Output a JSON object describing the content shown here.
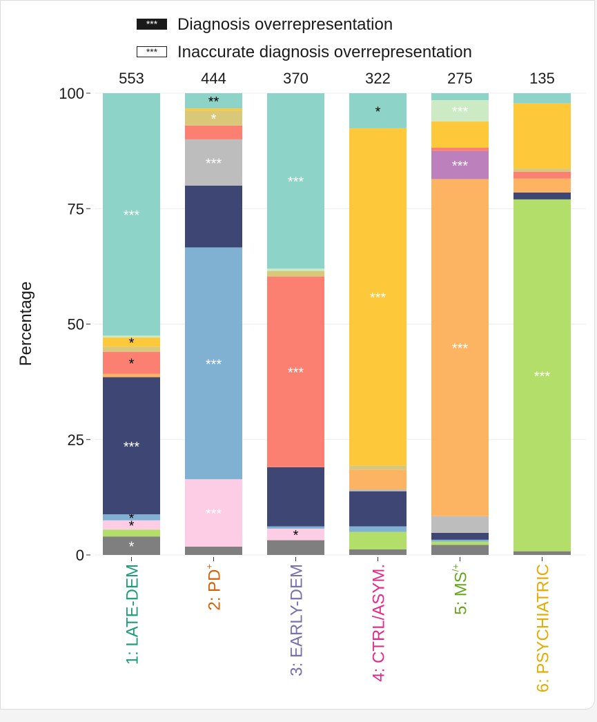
{
  "chart_data": {
    "type": "bar",
    "stacked": true,
    "ylabel": "Percentage",
    "ylim": [
      0,
      100
    ],
    "yticks": [
      "0",
      "25",
      "50",
      "75",
      "100"
    ],
    "grid": true,
    "legend_position": "top",
    "legend": [
      {
        "marker": "***",
        "label": "Diagnosis overrepresentation",
        "style": "filled"
      },
      {
        "marker": "***",
        "label": "Inaccurate diagnosis overrepresentation",
        "style": "outlined"
      }
    ],
    "categories": [
      {
        "prefix": "1: LATE-DEM",
        "sup": "",
        "color": "#1b9e77"
      },
      {
        "prefix": "2: PD",
        "sup": "+",
        "color": "#d95f02"
      },
      {
        "prefix": "3: EARLY-DEM",
        "sup": "",
        "color": "#7570b3"
      },
      {
        "prefix": "4: CTRL/ASYM.",
        "sup": "",
        "color": "#e7298a"
      },
      {
        "prefix": "5: MS",
        "sup": "/+",
        "color": "#66a61e"
      },
      {
        "prefix": "6: PSYCHIATRIC",
        "sup": "",
        "color": "#e6ab02"
      }
    ],
    "totals": [
      "553",
      "444",
      "370",
      "322",
      "275",
      "135"
    ],
    "bars": [
      [
        {
          "value": 4.0,
          "color": "#7f7f7f",
          "label": "*",
          "label_color": "#ffffff"
        },
        {
          "value": 1.5,
          "color": "#b3de69",
          "label": "",
          "label_color": ""
        },
        {
          "value": 2.0,
          "color": "#fccde5",
          "label": "*",
          "label_color": "#000000"
        },
        {
          "value": 1.3,
          "color": "#80b1d3",
          "label": "*",
          "label_color": "#000000"
        },
        {
          "value": 29.7,
          "color": "#3e4774",
          "label": "***",
          "label_color": "#ffffff"
        },
        {
          "value": 0.7,
          "color": "#fdb462",
          "label": "",
          "label_color": ""
        },
        {
          "value": 4.8,
          "color": "#fb8072",
          "label": "*",
          "label_color": "#000000"
        },
        {
          "value": 1.1,
          "color": "#d9c77a",
          "label": "",
          "label_color": ""
        },
        {
          "value": 2.0,
          "color": "#fdc93b",
          "label": "*",
          "label_color": "#000000"
        },
        {
          "value": 0.4,
          "color": "#ccebc5",
          "label": "",
          "label_color": ""
        },
        {
          "value": 52.5,
          "color": "#8dd3c7",
          "label": "***",
          "label_color": "#ffffff"
        }
      ],
      [
        {
          "value": 1.8,
          "color": "#7f7f7f",
          "label": "",
          "label_color": ""
        },
        {
          "value": 14.6,
          "color": "#fccde5",
          "label": "***",
          "label_color": "#ffffff"
        },
        {
          "value": 50.2,
          "color": "#80b1d3",
          "label": "***",
          "label_color": "#ffffff"
        },
        {
          "value": 13.4,
          "color": "#3e4774",
          "label": "",
          "label_color": ""
        },
        {
          "value": 10.0,
          "color": "#bdbdbd",
          "label": "***",
          "label_color": "#ffffff"
        },
        {
          "value": 3.0,
          "color": "#fb8072",
          "label": "",
          "label_color": ""
        },
        {
          "value": 3.2,
          "color": "#d9c77a",
          "label": "*",
          "label_color": "#ffffff"
        },
        {
          "value": 0.5,
          "color": "#fdc93b",
          "label": "",
          "label_color": ""
        },
        {
          "value": 3.3,
          "color": "#8dd3c7",
          "label": "**",
          "label_color": "#000000"
        }
      ],
      [
        {
          "value": 3.2,
          "color": "#7f7f7f",
          "label": "",
          "label_color": ""
        },
        {
          "value": 2.5,
          "color": "#fccde5",
          "label": "*",
          "label_color": "#000000"
        },
        {
          "value": 0.5,
          "color": "#80b1d3",
          "label": "",
          "label_color": ""
        },
        {
          "value": 12.8,
          "color": "#3e4774",
          "label": "",
          "label_color": ""
        },
        {
          "value": 41.3,
          "color": "#fb8072",
          "label": "***",
          "label_color": "#ffffff"
        },
        {
          "value": 1.2,
          "color": "#d9c77a",
          "label": "",
          "label_color": ""
        },
        {
          "value": 0.5,
          "color": "#ccebc5",
          "label": "",
          "label_color": ""
        },
        {
          "value": 38.0,
          "color": "#8dd3c7",
          "label": "***",
          "label_color": "#ffffff"
        }
      ],
      [
        {
          "value": 1.2,
          "color": "#7f7f7f",
          "label": "",
          "label_color": ""
        },
        {
          "value": 3.8,
          "color": "#b3de69",
          "label": "",
          "label_color": ""
        },
        {
          "value": 1.2,
          "color": "#80b1d3",
          "label": "",
          "label_color": ""
        },
        {
          "value": 7.6,
          "color": "#3e4774",
          "label": "",
          "label_color": ""
        },
        {
          "value": 0.4,
          "color": "#bdbdbd",
          "label": "",
          "label_color": ""
        },
        {
          "value": 4.2,
          "color": "#fdb462",
          "label": "",
          "label_color": ""
        },
        {
          "value": 1.0,
          "color": "#d9c77a",
          "label": "",
          "label_color": ""
        },
        {
          "value": 73.0,
          "color": "#fdc93b",
          "label": "***",
          "label_color": "#ffffff"
        },
        {
          "value": 7.6,
          "color": "#8dd3c7",
          "label": "*",
          "label_color": "#000000"
        }
      ],
      [
        {
          "value": 2.2,
          "color": "#7f7f7f",
          "label": "",
          "label_color": ""
        },
        {
          "value": 0.7,
          "color": "#b3de69",
          "label": "",
          "label_color": ""
        },
        {
          "value": 0.4,
          "color": "#80b1d3",
          "label": "",
          "label_color": ""
        },
        {
          "value": 1.5,
          "color": "#3e4774",
          "label": "",
          "label_color": ""
        },
        {
          "value": 3.6,
          "color": "#bdbdbd",
          "label": "",
          "label_color": ""
        },
        {
          "value": 73.0,
          "color": "#fdb462",
          "label": "***",
          "label_color": "#ffffff"
        },
        {
          "value": 6.1,
          "color": "#bc80bd",
          "label": "***",
          "label_color": "#ffffff"
        },
        {
          "value": 0.7,
          "color": "#fb8072",
          "label": "",
          "label_color": ""
        },
        {
          "value": 5.7,
          "color": "#fdc93b",
          "label": "",
          "label_color": ""
        },
        {
          "value": 4.6,
          "color": "#ccebc5",
          "label": "***",
          "label_color": "#ffffff"
        },
        {
          "value": 1.5,
          "color": "#8dd3c7",
          "label": "",
          "label_color": ""
        }
      ],
      [
        {
          "value": 0.8,
          "color": "#7f7f7f",
          "label": "",
          "label_color": ""
        },
        {
          "value": 76.2,
          "color": "#b3de69",
          "label": "***",
          "label_color": "#ffffff"
        },
        {
          "value": 1.5,
          "color": "#3e4774",
          "label": "",
          "label_color": ""
        },
        {
          "value": 3.0,
          "color": "#fdb462",
          "label": "",
          "label_color": ""
        },
        {
          "value": 1.5,
          "color": "#fb8072",
          "label": "",
          "label_color": ""
        },
        {
          "value": 0.7,
          "color": "#d9c77a",
          "label": "",
          "label_color": ""
        },
        {
          "value": 14.1,
          "color": "#fdc93b",
          "label": "",
          "label_color": ""
        },
        {
          "value": 2.2,
          "color": "#8dd3c7",
          "label": "",
          "label_color": ""
        }
      ]
    ]
  }
}
